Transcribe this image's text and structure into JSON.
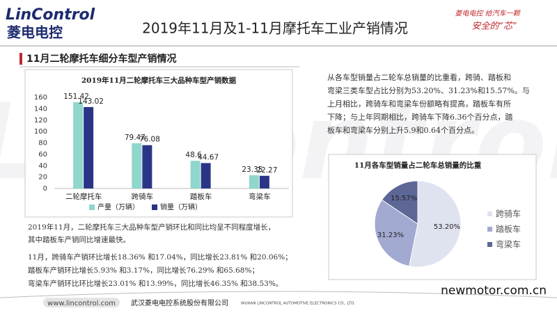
{
  "header": {
    "logo": "LinControl",
    "logo_cn": "菱电电控",
    "title": "2019年11月及1-11月摩托车工业产销情况",
    "slogan": [
      "菱电电控 给汽车一颗",
      "安全的“芯”"
    ]
  },
  "section_title": "11月二轮摩托车细分车型产销情况",
  "watermark": "LinControl",
  "chart_data": [
    {
      "type": "bar",
      "title": "2019年11月二轮摩托车三大品种车型产销数据",
      "categories": [
        "二轮摩托车",
        "跨骑车",
        "踏板车",
        "弯梁车"
      ],
      "series": [
        {
          "name": "产量（万辆）",
          "color": "#8fd6cc",
          "values": [
            151.42,
            79.47,
            48.6,
            23.35
          ]
        },
        {
          "name": "销量（万辆）",
          "color": "#2b3588",
          "values": [
            143.02,
            76.08,
            44.67,
            22.27
          ]
        }
      ],
      "ylim": [
        0,
        160
      ],
      "yticks": [
        0,
        20,
        40,
        60,
        80,
        100,
        120,
        140,
        160
      ],
      "grid": false,
      "legend": "bottom"
    },
    {
      "type": "pie",
      "title": "11月各车型销量占二轮车总销量的比重",
      "categories": [
        "跨骑车",
        "踏板车",
        "弯梁车"
      ],
      "values": [
        53.2,
        31.23,
        15.57
      ],
      "value_labels": [
        "53.20%",
        "31.23%",
        "15.57%"
      ],
      "colors": [
        "#dfe2ef",
        "#a2aad1",
        "#5c6796"
      ],
      "legend": "right"
    }
  ],
  "right_text": [
    "从各车型销量占二轮车总销量的比重看，跨骑、踏板和",
    "弯梁三类车型占比分别为53.20%、31.23%和15.57%。与",
    "上月相比，跨骑车和弯梁车份额略有提高，踏板车有所",
    "下降；与上年同期相比，跨骑车下降6.36个百分点，踏",
    "板车和弯梁车分别上升5.9和0.64个百分点。"
  ],
  "left_text": [
    "2019年11月，二轮摩托车三大品种车型产销环比和同比均呈不同程度增长，",
    "其中踏板车产销同比增速最快。",
    "11月，跨骑车产销环比增长18.36% 和17.04%，同比增长23.81% 和20.06%；",
    "踏板车产销环比增长5.93% 和3.17%，同比增长76.29% 和65.68%；",
    "弯梁车产销环比环比增长23.01% 和13.99%，同比增长46.35% 和38.53%。"
  ],
  "footer": {
    "url": "www.lincontrol.com",
    "company": "武汉菱电电控系统股份有限公司",
    "company_en": "WUHAN LINCONTROL AUTOMOTIVE ELECTRONICS CO., LTD.",
    "source": "newmotor.com.cn"
  }
}
